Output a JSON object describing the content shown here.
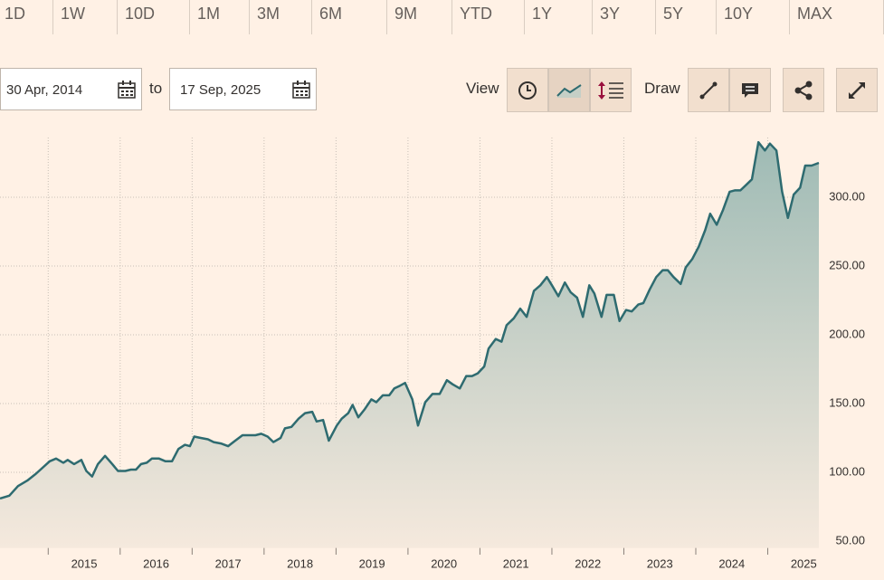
{
  "toolbar": {
    "periods": [
      "1D",
      "1W",
      "10D",
      "1M",
      "3M",
      "6M",
      "9M",
      "YTD",
      "1Y",
      "3Y",
      "5Y",
      "10Y",
      "MAX"
    ],
    "from_date": "30 Apr, 2014",
    "to_label": "to",
    "to_date": "17 Sep, 2025",
    "view_label": "View",
    "draw_label": "Draw"
  },
  "chart_data": {
    "type": "area",
    "color": "#2e6b70",
    "grid": true,
    "xlim": [
      2014.33,
      2025.71
    ],
    "ylim": [
      45,
      350
    ],
    "xticks": [
      2015,
      2016,
      2017,
      2018,
      2019,
      2020,
      2021,
      2022,
      2023,
      2024,
      2025
    ],
    "yticks": [
      {
        "value": 50,
        "label": "50.00"
      },
      {
        "value": 100,
        "label": "100.00"
      },
      {
        "value": 150,
        "label": "150.00"
      },
      {
        "value": 200,
        "label": "200.00"
      },
      {
        "value": 250,
        "label": "250.00"
      },
      {
        "value": 300,
        "label": "300.00"
      }
    ],
    "x": [
      2014.33,
      2014.46,
      2014.58,
      2014.71,
      2014.83,
      2015.02,
      2015.11,
      2015.21,
      2015.27,
      2015.36,
      2015.46,
      2015.53,
      2015.61,
      2015.69,
      2015.79,
      2015.89,
      2015.97,
      2016.07,
      2016.15,
      2016.22,
      2016.29,
      2016.37,
      2016.44,
      2016.54,
      2016.63,
      2016.72,
      2016.81,
      2016.9,
      2016.97,
      2017.03,
      2017.12,
      2017.22,
      2017.3,
      2017.4,
      2017.5,
      2017.6,
      2017.7,
      2017.8,
      2017.88,
      2017.96,
      2018.05,
      2018.13,
      2018.23,
      2018.29,
      2018.38,
      2018.48,
      2018.57,
      2018.67,
      2018.73,
      2018.82,
      2018.9,
      2019.01,
      2019.08,
      2019.17,
      2019.23,
      2019.31,
      2019.4,
      2019.49,
      2019.56,
      2019.65,
      2019.74,
      2019.81,
      2019.89,
      2019.96,
      2020.06,
      2020.14,
      2020.24,
      2020.34,
      2020.44,
      2020.54,
      2020.62,
      2020.72,
      2020.81,
      2020.89,
      2020.97,
      2021.06,
      2021.12,
      2021.22,
      2021.3,
      2021.37,
      2021.47,
      2021.56,
      2021.65,
      2021.75,
      2021.84,
      2021.93,
      2022.0,
      2022.09,
      2022.18,
      2022.26,
      2022.35,
      2022.43,
      2022.52,
      2022.59,
      2022.69,
      2022.76,
      2022.86,
      2022.94,
      2023.03,
      2023.11,
      2023.2,
      2023.27,
      2023.36,
      2023.45,
      2023.54,
      2023.61,
      2023.69,
      2023.79,
      2023.86,
      2023.95,
      2024.04,
      2024.13,
      2024.2,
      2024.29,
      2024.38,
      2024.47,
      2024.54,
      2024.62,
      2024.7,
      2024.78,
      2024.87,
      2024.96,
      2025.03,
      2025.12,
      2025.2,
      2025.28,
      2025.36,
      2025.45,
      2025.52,
      2025.61,
      2025.71
    ],
    "values": [
      81,
      83,
      90,
      94,
      99,
      108,
      110,
      107,
      109,
      106,
      109,
      101,
      97,
      106,
      112,
      106,
      101,
      101,
      102,
      102,
      106,
      107,
      110,
      110,
      108,
      108,
      117,
      120,
      119,
      126,
      125,
      124,
      122,
      121,
      119,
      123,
      127,
      127,
      127,
      128,
      126,
      122,
      125,
      132,
      133,
      139,
      143,
      144,
      137,
      138,
      123,
      134,
      139,
      143,
      149,
      140,
      146,
      153,
      151,
      156,
      156,
      161,
      163,
      165,
      153,
      134,
      151,
      157,
      157,
      167,
      164,
      161,
      170,
      170,
      172,
      177,
      190,
      197,
      195,
      207,
      212,
      219,
      213,
      232,
      236,
      242,
      236,
      228,
      238,
      231,
      227,
      213,
      236,
      230,
      213,
      229,
      229,
      210,
      218,
      217,
      222,
      223,
      233,
      242,
      247,
      247,
      242,
      237,
      249,
      255,
      264,
      276,
      288,
      280,
      291,
      304,
      305,
      305,
      309,
      313,
      340,
      334,
      339,
      334,
      304,
      285,
      302,
      307,
      323,
      323,
      325
    ]
  }
}
